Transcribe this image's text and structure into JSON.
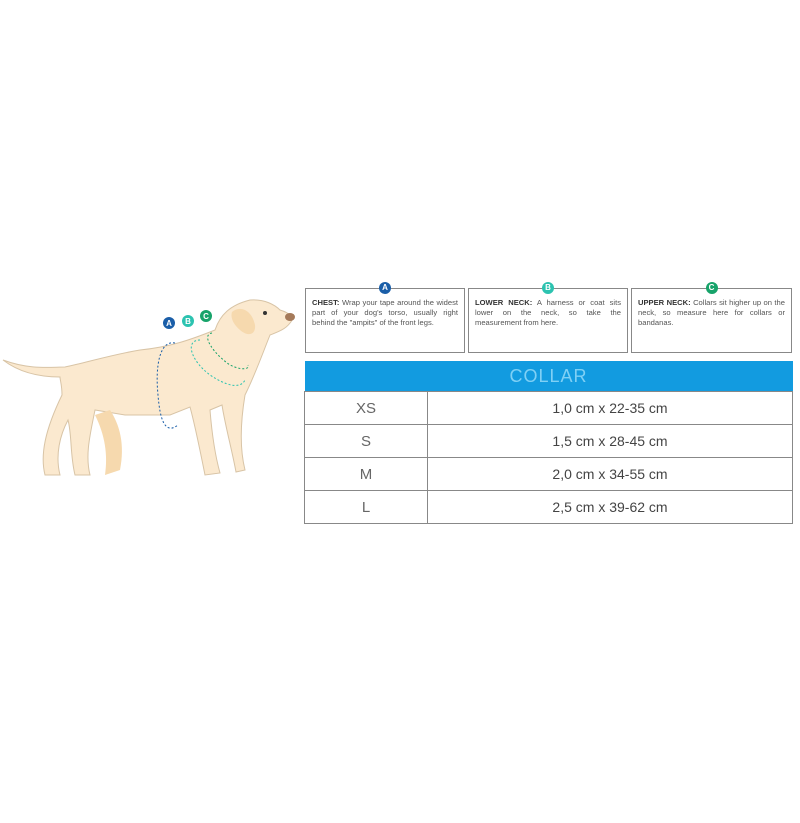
{
  "colors": {
    "A": "#1a5ea8",
    "B": "#2cc3b0",
    "C": "#17a36a",
    "header": "#129be0",
    "dog": "#fbe9cf"
  },
  "dog_labels": [
    "A",
    "B",
    "C"
  ],
  "boxes": [
    {
      "badge": "A",
      "title": "CHEST:",
      "text": " Wrap your tape around the widest part of your dog's torso, usually right behind the \"ampits\" of the front legs."
    },
    {
      "badge": "B",
      "title": "LOWER NECK:",
      "text": " A harness or coat sits lower on the neck, so take the measurement from here."
    },
    {
      "badge": "C",
      "title": "UPPER NECK:",
      "text": " Collars sit higher up on the neck, so measure here for collars or bandanas."
    }
  ],
  "table": {
    "header": "COLLAR",
    "rows": [
      {
        "size": "XS",
        "value": "1,0 cm x 22-35 cm"
      },
      {
        "size": "S",
        "value": "1,5 cm x 28-45 cm"
      },
      {
        "size": "M",
        "value": "2,0 cm x 34-55 cm"
      },
      {
        "size": "L",
        "value": "2,5 cm x 39-62 cm"
      }
    ]
  }
}
